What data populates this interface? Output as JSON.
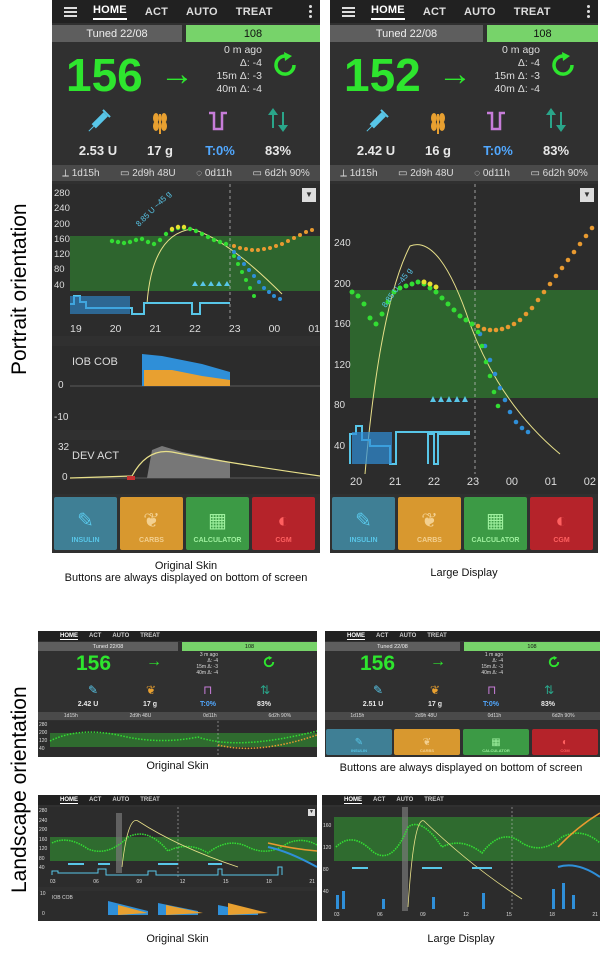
{
  "side_labels": {
    "portrait": "Portrait orientation",
    "landscape": "Landscape orientation"
  },
  "tabs": [
    "HOME",
    "ACT",
    "AUTO",
    "TREAT"
  ],
  "captions": {
    "p1_line1": "Original Skin",
    "p1_line2": "Buttons are always displayed on bottom of screen",
    "p2": "Large Display",
    "l1": "Original Skin",
    "l2": "Buttons are always displayed on bottom of screen",
    "l3": "Original Skin",
    "l4": "Large Display"
  },
  "portrait_original": {
    "profile": "Tuned 22/08",
    "target": "108",
    "bg": "156",
    "arrow": "→",
    "ago": "0 m ago",
    "delta": "Δ: -4",
    "delta15": "15m Δ: -3",
    "delta40": "40m Δ: -4",
    "iob": "2.53 U",
    "cob": "17 g",
    "tbr": "T:0%",
    "sens": "83%",
    "status": [
      "1d15h",
      "2d9h 48U",
      "0d11h",
      "6d2h 90%"
    ],
    "y_labels": [
      "280",
      "240",
      "200",
      "160",
      "120",
      "80",
      "40"
    ],
    "x_labels": [
      "19",
      "20",
      "21",
      "22",
      "23",
      "00",
      "01"
    ],
    "smb_note": "8.85 U ~45 g",
    "iob_panel_label": "IOB COB",
    "iob_axis": [
      "0",
      "-10"
    ],
    "dev_panel_label": "DEV ACT",
    "dev_axis": [
      "32",
      "0"
    ],
    "buttons": [
      "INSULIN",
      "CARBS",
      "CALCULATOR",
      "CGM"
    ]
  },
  "portrait_large": {
    "profile": "Tuned 22/08",
    "target": "108",
    "bg": "152",
    "arrow": "→",
    "ago": "0 m ago",
    "delta": "Δ: -4",
    "delta15": "15m Δ: -3",
    "delta40": "40m Δ: -4",
    "iob": "2.42 U",
    "cob": "16 g",
    "tbr": "T:0%",
    "sens": "83%",
    "status": [
      "1d15h",
      "2d9h 48U",
      "0d11h",
      "6d2h 90%"
    ],
    "y_labels": [
      "240",
      "200",
      "160",
      "120",
      "80",
      "40"
    ],
    "x_labels": [
      "20",
      "21",
      "22",
      "23",
      "00",
      "01",
      "02"
    ],
    "smb_note": "8.85 U ~45 g",
    "buttons": [
      "INSULIN",
      "CARBS",
      "CALCULATOR",
      "CGM"
    ]
  },
  "landscape_a": {
    "profile": "Tuned 22/08",
    "target": "108",
    "bg": "156",
    "arrow": "→",
    "ago": "3 m ago",
    "delta": "Δ: -4",
    "delta15": "15m Δ: -3",
    "delta40": "40m Δ: -4",
    "iob": "2.42 U",
    "cob": "17 g",
    "tbr": "T:0%",
    "sens": "83%",
    "status": [
      "1d15h",
      "2d9h 48U",
      "0d11h",
      "6d2h 90%"
    ],
    "y_labels": [
      "280",
      "200",
      "120",
      "40"
    ]
  },
  "landscape_b": {
    "profile": "Tuned 22/08",
    "target": "108",
    "bg": "156",
    "arrow": "→",
    "ago": "1 m ago",
    "delta": "Δ: -4",
    "delta15": "15m Δ: -3",
    "delta40": "40m Δ: -4",
    "iob": "2.51 U",
    "cob": "17 g",
    "tbr": "T:0%",
    "sens": "83%",
    "status": [
      "1d15h",
      "2d9h 48U",
      "0d11h",
      "6d2h 90%"
    ],
    "buttons": [
      "INSULIN",
      "CARBS",
      "CALCULATOR",
      "CGM"
    ]
  },
  "landscape_c": {
    "y_labels": [
      "280",
      "240",
      "200",
      "160",
      "120",
      "80",
      "40"
    ],
    "x_labels": [
      "03",
      "06",
      "09",
      "12",
      "15",
      "18",
      "21"
    ],
    "iob_label": "IOB COB",
    "iob_axis": [
      "10",
      "0"
    ]
  },
  "landscape_d": {
    "y_labels": [
      "160",
      "120",
      "80",
      "40"
    ],
    "x_labels": [
      "03",
      "06",
      "09",
      "12",
      "15",
      "18",
      "21"
    ]
  },
  "colors": {
    "bg_green": "#2ee52e",
    "target_band": "#2f6b2f",
    "iob_blue": "#2f8fd8",
    "cob_orange": "#e8a030",
    "tbr_blue": "#51a8ff",
    "insulin_btn": "#3f7f95",
    "carbs_btn": "#d8982f",
    "calc_btn": "#3c9a45",
    "cgm_btn": "#b5232a"
  }
}
